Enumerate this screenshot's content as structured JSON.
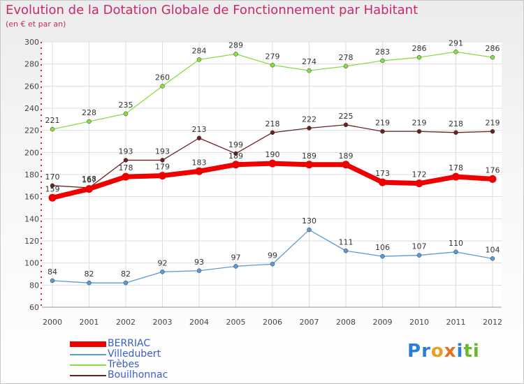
{
  "header": {
    "title": "Evolution de la Dotation Globale de Fonctionnement par Habitant",
    "subtitle": "(en € et par an)"
  },
  "logo": {
    "text": "Proxiti",
    "letters": [
      {
        "ch": "P",
        "color": "#2a7fd4"
      },
      {
        "ch": "r",
        "color": "#2a7fd4"
      },
      {
        "ch": "o",
        "color": "#e8a020"
      },
      {
        "ch": "x",
        "color": "#e87020"
      },
      {
        "ch": "i",
        "color": "#2a7fd4"
      },
      {
        "ch": "t",
        "color": "#6ab82c"
      },
      {
        "ch": "i",
        "color": "#6ab82c"
      }
    ]
  },
  "chart_data": {
    "type": "line",
    "title": "Evolution de la Dotation Globale de Fonctionnement par Habitant",
    "xlabel": "",
    "ylabel": "",
    "ylim": [
      60,
      300
    ],
    "yticks": [
      60,
      80,
      100,
      120,
      140,
      160,
      180,
      200,
      220,
      240,
      260,
      280,
      300
    ],
    "categories": [
      "2000",
      "2001",
      "2002",
      "2003",
      "2004",
      "2005",
      "2006",
      "2007",
      "2008",
      "2009",
      "2010",
      "2011",
      "2012"
    ],
    "grid": true,
    "legend_position": "bottom-left",
    "series": [
      {
        "name": "BERRIAC",
        "color": "#ee0000",
        "emphasis": true,
        "values": [
          159,
          167,
          178,
          179,
          183,
          189,
          190,
          189,
          189,
          173,
          172,
          178,
          176
        ]
      },
      {
        "name": "Villedubert",
        "color": "#5b9bd5",
        "emphasis": false,
        "values": [
          84,
          82,
          82,
          92,
          93,
          97,
          99,
          130,
          111,
          106,
          107,
          110,
          104
        ]
      },
      {
        "name": "Trèbes",
        "color": "#88dd44",
        "emphasis": false,
        "values": [
          221,
          228,
          235,
          260,
          284,
          289,
          279,
          274,
          278,
          283,
          286,
          291,
          286
        ]
      },
      {
        "name": "Bouilhonnac",
        "color": "#6b2020",
        "emphasis": false,
        "values": [
          170,
          168,
          193,
          193,
          213,
          199,
          218,
          222,
          225,
          219,
          219,
          218,
          219
        ]
      }
    ]
  }
}
